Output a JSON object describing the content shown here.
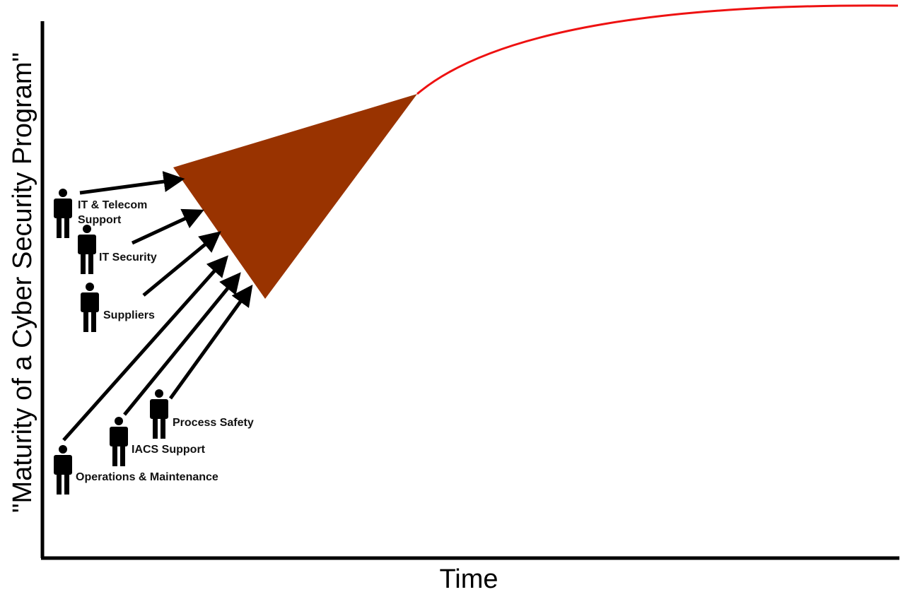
{
  "axes": {
    "y_label": "\"Maturity of a Cyber Security Program\"",
    "x_label": "Time"
  },
  "contributors": [
    {
      "id": "it-telecom-support",
      "lines": [
        "IT & Telecom",
        "Support"
      ]
    },
    {
      "id": "it-security",
      "lines": [
        "IT Security"
      ]
    },
    {
      "id": "suppliers",
      "lines": [
        "Suppliers"
      ]
    },
    {
      "id": "operations-maintenance",
      "lines": [
        "Operations & Maintenance"
      ]
    },
    {
      "id": "iacs-support",
      "lines": [
        "IACS Support"
      ]
    },
    {
      "id": "process-safety",
      "lines": [
        "Process Safety"
      ]
    }
  ],
  "colors": {
    "wedge": "#993300",
    "curve": "#ee1111",
    "ink": "#000000"
  },
  "icons": {
    "person": "person-icon",
    "arrow": "arrow-icon"
  }
}
